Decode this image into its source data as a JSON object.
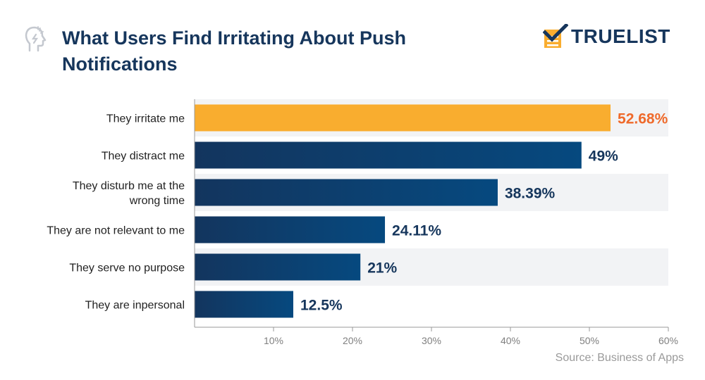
{
  "header": {
    "title": "What Users Find Irritating About Push Notifications",
    "brand": "TRUELIST"
  },
  "colors": {
    "title": "#16365c",
    "highlight_bar": "#f9ad2f",
    "highlight_label": "#ef6a2b",
    "bar_dark": "#13355e",
    "bar_light": "#06497f",
    "band": "#f2f3f5",
    "tick": "#808080",
    "brand_yellow": "#f9ad2f"
  },
  "chart_data": {
    "type": "bar",
    "orientation": "horizontal",
    "categories": [
      "They irritate me",
      "They distract me",
      "They disturb me at the wrong time",
      "They are not relevant to me",
      "They serve no purpose",
      "They are inpersonal"
    ],
    "values": [
      52.68,
      49,
      38.39,
      24.11,
      21,
      12.5
    ],
    "value_labels": [
      "52.68%",
      "49%",
      "38.39%",
      "24.11%",
      "21%",
      "12.5%"
    ],
    "highlight_index": 0,
    "xlim": [
      0,
      60
    ],
    "xticks": [
      10,
      20,
      30,
      40,
      50,
      60
    ],
    "xtick_labels": [
      "10%",
      "20%",
      "30%",
      "40%",
      "50%",
      "60%"
    ],
    "grid": false
  },
  "source": "Source: Business of Apps"
}
